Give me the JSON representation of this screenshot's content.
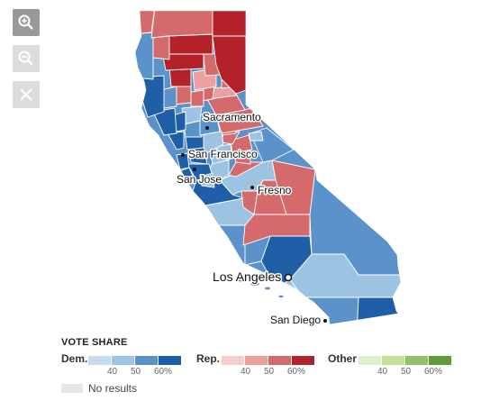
{
  "colors": {
    "dem": [
      "#c6dcee",
      "#9dc3e3",
      "#5b92c9",
      "#1e5fa8"
    ],
    "rep": [
      "#f6cccd",
      "#eb9fa1",
      "#d56a6d",
      "#b32229"
    ],
    "other": [
      "#e0f0c8",
      "#c2e09a",
      "#93c166",
      "#5d9b3b"
    ],
    "no_results": "#e6e6e6"
  },
  "controls": {
    "zoom_in_icon": "zoom-in-icon",
    "zoom_out_icon": "zoom-out-icon",
    "reset_icon": "close-icon"
  },
  "map": {
    "cities": [
      {
        "id": "sacramento",
        "name": "Sacramento"
      },
      {
        "id": "san-francisco",
        "name": "San Francisco"
      },
      {
        "id": "san-jose",
        "name": "San Jose"
      },
      {
        "id": "fresno",
        "name": "Fresno"
      },
      {
        "id": "los-angeles",
        "name": "Los Angeles"
      },
      {
        "id": "san-diego",
        "name": "San Diego"
      }
    ]
  },
  "legend": {
    "title": "VOTE SHARE",
    "dem_label": "Dem.",
    "rep_label": "Rep.",
    "other_label": "Other",
    "ticks": [
      "40",
      "50",
      "60%"
    ],
    "no_results_label": "No results"
  }
}
